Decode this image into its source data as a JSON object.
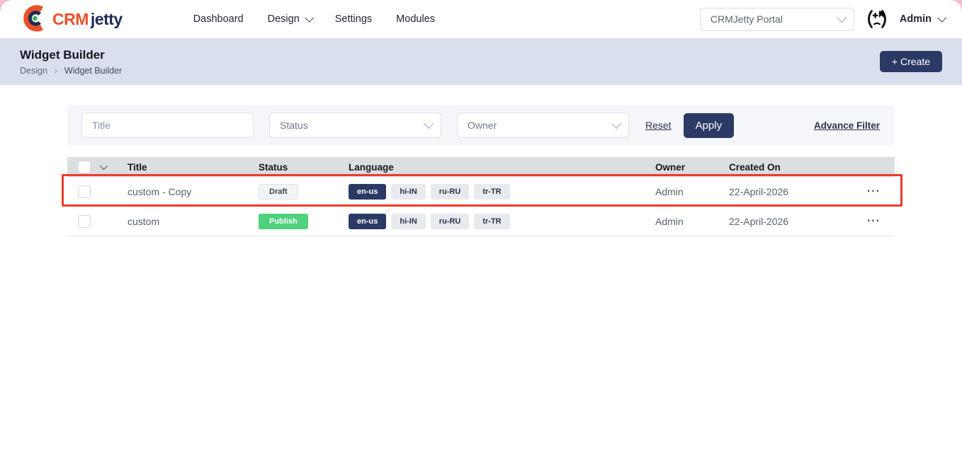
{
  "brand": {
    "crm": "CRM",
    "jetty": "jetty"
  },
  "nav": {
    "items": [
      {
        "label": "Dashboard",
        "caret": false
      },
      {
        "label": "Design",
        "caret": true
      },
      {
        "label": "Settings",
        "caret": false
      },
      {
        "label": "Modules",
        "caret": false
      }
    ]
  },
  "portal": {
    "value": "CRMJetty Portal"
  },
  "user": {
    "label": "Admin"
  },
  "header": {
    "title": "Widget Builder",
    "breadcrumb": {
      "parent": "Design",
      "separator": "›",
      "current": "Widget Builder"
    },
    "create_label": "+ Create"
  },
  "filters": {
    "title_placeholder": "Title",
    "status_placeholder": "Status",
    "owner_placeholder": "Owner",
    "reset_label": "Reset",
    "apply_label": "Apply",
    "advance_filter_label": "Advance Filter"
  },
  "table": {
    "columns": [
      "Title",
      "Status",
      "Language",
      "Owner",
      "Created On"
    ],
    "rows": [
      {
        "title": "custom - Copy",
        "status": "Draft",
        "status_type": "draft",
        "languages": [
          {
            "label": "en-us",
            "active": true
          },
          {
            "label": "hi-IN",
            "active": false
          },
          {
            "label": "ru-RU",
            "active": false
          },
          {
            "label": "tr-TR",
            "active": false
          }
        ],
        "owner": "Admin",
        "created_on": "22-April-2026",
        "highlighted": true
      },
      {
        "title": "custom",
        "status": "Publish",
        "status_type": "publish",
        "languages": [
          {
            "label": "en-us",
            "active": true
          },
          {
            "label": "hi-IN",
            "active": false
          },
          {
            "label": "ru-RU",
            "active": false
          },
          {
            "label": "tr-TR",
            "active": false
          }
        ],
        "owner": "Admin",
        "created_on": "22-April-2026",
        "highlighted": false
      }
    ],
    "actions_glyph": "⋯"
  },
  "colors": {
    "navy": "#2b3a64",
    "publish_green": "#4fd17e",
    "highlight_red": "#ee3b2c",
    "header_band": "#d9dfed",
    "table_header_bg": "#dcdee2",
    "logo_orange": "#e8502b",
    "logo_navy": "#1e2b52",
    "logo_dot_green": "#3db24b",
    "corner_pink": "#f6bfcd"
  }
}
